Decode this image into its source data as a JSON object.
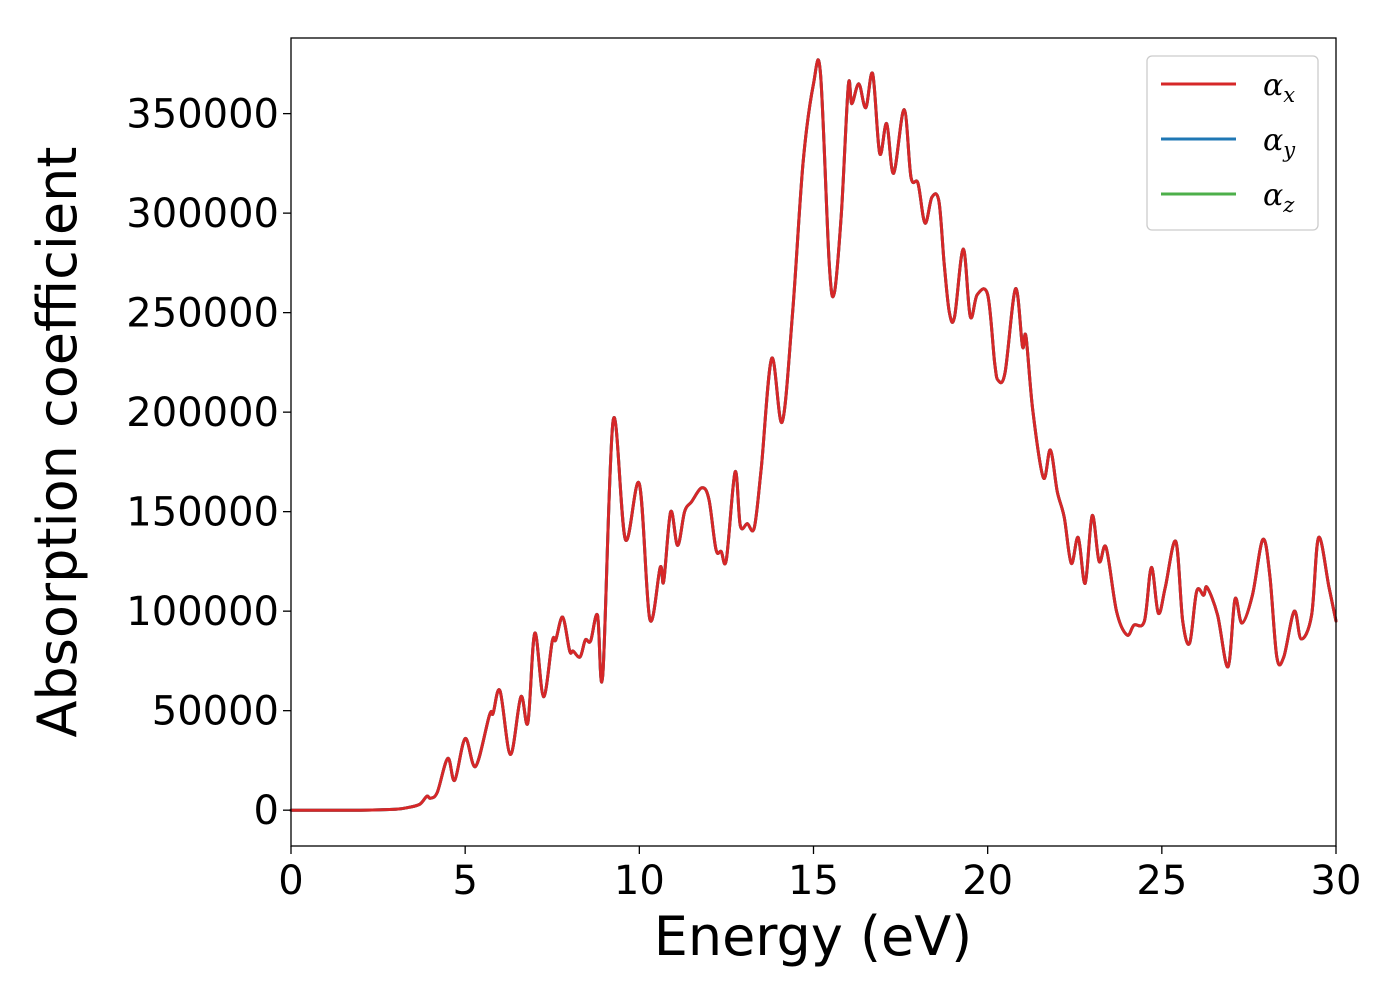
{
  "chart_data": {
    "type": "line",
    "title": "",
    "xlabel": "Energy (eV)",
    "ylabel": "Absorption coefficient",
    "xlim": [
      0,
      30
    ],
    "ylim": [
      -18000,
      388000
    ],
    "xticks": [
      0,
      5,
      10,
      15,
      20,
      25,
      30
    ],
    "yticks": [
      0,
      50000,
      100000,
      150000,
      200000,
      250000,
      300000,
      350000
    ],
    "grid": false,
    "legend_position": "top-right",
    "legend": [
      {
        "base": "α",
        "sub": "x",
        "color": "#d62728"
      },
      {
        "base": "α",
        "sub": "y",
        "color": "#1f77b4"
      },
      {
        "base": "α",
        "sub": "z",
        "color": "#4daf4a"
      }
    ],
    "series": [
      {
        "name": "αz",
        "color": "#4daf4a",
        "x": [
          0,
          1,
          2,
          3,
          3.4,
          3.7,
          3.9,
          4.0,
          4.2,
          4.5,
          4.7,
          5.0,
          5.3,
          5.7,
          5.8,
          6.0,
          6.3,
          6.6,
          6.8,
          7.0,
          7.25,
          7.5,
          7.6,
          7.8,
          8.0,
          8.1,
          8.3,
          8.45,
          8.6,
          8.8,
          8.95,
          9.25,
          9.6,
          10.0,
          10.3,
          10.6,
          10.7,
          10.9,
          11.1,
          11.3,
          11.5,
          11.8,
          12.0,
          12.2,
          12.35,
          12.5,
          12.75,
          12.9,
          13.1,
          13.3,
          13.5,
          13.8,
          14.1,
          14.4,
          14.7,
          15.0,
          15.2,
          15.45,
          15.6,
          15.8,
          16.0,
          16.1,
          16.3,
          16.5,
          16.7,
          16.9,
          17.1,
          17.3,
          17.6,
          17.8,
          18.0,
          18.2,
          18.4,
          18.6,
          18.75,
          18.9,
          19.05,
          19.3,
          19.5,
          19.7,
          20.0,
          20.2,
          20.3,
          20.5,
          20.8,
          21.0,
          21.1,
          21.3,
          21.6,
          21.8,
          22.0,
          22.2,
          22.4,
          22.6,
          22.8,
          23.0,
          23.2,
          23.4,
          23.7,
          24.0,
          24.2,
          24.5,
          24.7,
          24.9,
          25.1,
          25.4,
          25.6,
          25.8,
          26.0,
          26.2,
          26.3,
          26.6,
          26.9,
          27.1,
          27.3,
          27.6,
          27.9,
          28.1,
          28.3,
          28.5,
          28.8,
          29.0,
          29.3,
          29.5,
          29.8,
          30.0
        ],
        "y": [
          0,
          0,
          0,
          500,
          1500,
          3000,
          7000,
          6000,
          9000,
          26000,
          15000,
          36000,
          22000,
          48000,
          48500,
          60000,
          28000,
          57000,
          44000,
          89000,
          57000,
          85000,
          85500,
          97000,
          80000,
          80000,
          77000,
          85500,
          85000,
          98000,
          68000,
          196000,
          136000,
          164000,
          96000,
          122000,
          115000,
          150000,
          133000,
          150000,
          155000,
          162000,
          156000,
          131000,
          130000,
          126000,
          170000,
          143000,
          144000,
          142000,
          172000,
          227000,
          195000,
          250000,
          325000,
          365000,
          370000,
          275000,
          260000,
          300000,
          364000,
          355000,
          365000,
          353000,
          370000,
          330000,
          345000,
          320000,
          352000,
          318000,
          315000,
          295000,
          308000,
          306000,
          275000,
          250000,
          248000,
          282000,
          248000,
          259000,
          259000,
          225000,
          216000,
          220000,
          262000,
          233000,
          238000,
          200000,
          167000,
          181000,
          160000,
          147000,
          124000,
          137000,
          114000,
          148000,
          125000,
          132000,
          100000,
          88000,
          93000,
          95000,
          122000,
          99000,
          112000,
          135000,
          95000,
          84000,
          110000,
          108000,
          112000,
          98000,
          72000,
          106000,
          94000,
          108000,
          136000,
          118000,
          77000,
          77000,
          100000,
          86000,
          98000,
          137000,
          112000,
          95000
        ]
      },
      {
        "name": "αy",
        "color": "#1f77b4",
        "x": [
          0,
          1,
          2,
          3,
          3.4,
          3.7,
          3.9,
          4.0,
          4.2,
          4.5,
          4.7,
          5.0,
          5.3,
          5.7,
          5.8,
          6.0,
          6.3,
          6.6,
          6.8,
          7.0,
          7.25,
          7.5,
          7.6,
          7.8,
          8.0,
          8.1,
          8.3,
          8.45,
          8.6,
          8.8,
          8.95,
          9.25,
          9.6,
          10.0,
          10.3,
          10.6,
          10.7,
          10.9,
          11.1,
          11.3,
          11.5,
          11.8,
          12.0,
          12.2,
          12.35,
          12.5,
          12.75,
          12.9,
          13.1,
          13.3,
          13.5,
          13.8,
          14.1,
          14.4,
          14.7,
          15.0,
          15.2,
          15.45,
          15.6,
          15.8,
          16.0,
          16.1,
          16.3,
          16.5,
          16.7,
          16.9,
          17.1,
          17.3,
          17.6,
          17.8,
          18.0,
          18.2,
          18.4,
          18.6,
          18.75,
          18.9,
          19.05,
          19.3,
          19.5,
          19.7,
          20.0,
          20.2,
          20.3,
          20.5,
          20.8,
          21.0,
          21.1,
          21.3,
          21.6,
          21.8,
          22.0,
          22.2,
          22.4,
          22.6,
          22.8,
          23.0,
          23.2,
          23.4,
          23.7,
          24.0,
          24.2,
          24.5,
          24.7,
          24.9,
          25.1,
          25.4,
          25.6,
          25.8,
          26.0,
          26.2,
          26.3,
          26.6,
          26.9,
          27.1,
          27.3,
          27.6,
          27.9,
          28.1,
          28.3,
          28.5,
          28.8,
          29.0,
          29.3,
          29.5,
          29.8,
          30.0
        ],
        "y": [
          0,
          0,
          0,
          500,
          1500,
          3000,
          7000,
          6000,
          9000,
          26000,
          15000,
          36000,
          22000,
          48000,
          48500,
          60000,
          28000,
          57000,
          44000,
          89000,
          57000,
          85000,
          85500,
          97000,
          80000,
          80000,
          77000,
          85500,
          85000,
          98000,
          68000,
          196000,
          136000,
          164000,
          96000,
          122000,
          115000,
          150000,
          133000,
          150000,
          155000,
          162000,
          156000,
          131000,
          130000,
          126000,
          170000,
          143000,
          144000,
          142000,
          172000,
          227000,
          195000,
          250000,
          325000,
          365000,
          370000,
          275000,
          260000,
          300000,
          364000,
          355000,
          365000,
          353000,
          370000,
          330000,
          345000,
          320000,
          352000,
          318000,
          315000,
          295000,
          308000,
          306000,
          275000,
          250000,
          248000,
          282000,
          248000,
          259000,
          259000,
          225000,
          216000,
          220000,
          262000,
          233000,
          238000,
          200000,
          167000,
          181000,
          160000,
          147000,
          124000,
          137000,
          114000,
          148000,
          125000,
          132000,
          100000,
          88000,
          93000,
          95000,
          122000,
          99000,
          112000,
          135000,
          95000,
          84000,
          110000,
          108000,
          112000,
          98000,
          72000,
          106000,
          94000,
          108000,
          136000,
          118000,
          77000,
          77000,
          100000,
          86000,
          98000,
          137000,
          112000,
          95000
        ]
      },
      {
        "name": "αx",
        "color": "#d62728",
        "x": [
          0,
          1,
          2,
          3,
          3.4,
          3.7,
          3.9,
          4.0,
          4.2,
          4.5,
          4.7,
          5.0,
          5.3,
          5.7,
          5.8,
          6.0,
          6.3,
          6.6,
          6.8,
          7.0,
          7.25,
          7.5,
          7.6,
          7.8,
          8.0,
          8.1,
          8.3,
          8.45,
          8.6,
          8.8,
          8.95,
          9.25,
          9.6,
          10.0,
          10.3,
          10.6,
          10.7,
          10.9,
          11.1,
          11.3,
          11.5,
          11.8,
          12.0,
          12.2,
          12.35,
          12.5,
          12.75,
          12.9,
          13.1,
          13.3,
          13.5,
          13.8,
          14.1,
          14.4,
          14.7,
          15.0,
          15.2,
          15.45,
          15.6,
          15.8,
          16.0,
          16.1,
          16.3,
          16.5,
          16.7,
          16.9,
          17.1,
          17.3,
          17.6,
          17.8,
          18.0,
          18.2,
          18.4,
          18.6,
          18.75,
          18.9,
          19.05,
          19.3,
          19.5,
          19.7,
          20.0,
          20.2,
          20.3,
          20.5,
          20.8,
          21.0,
          21.1,
          21.3,
          21.6,
          21.8,
          22.0,
          22.2,
          22.4,
          22.6,
          22.8,
          23.0,
          23.2,
          23.4,
          23.7,
          24.0,
          24.2,
          24.5,
          24.7,
          24.9,
          25.1,
          25.4,
          25.6,
          25.8,
          26.0,
          26.2,
          26.3,
          26.6,
          26.9,
          27.1,
          27.3,
          27.6,
          27.9,
          28.1,
          28.3,
          28.5,
          28.8,
          29.0,
          29.3,
          29.5,
          29.8,
          30.0
        ],
        "y": [
          0,
          0,
          0,
          500,
          1500,
          3000,
          7000,
          6000,
          9000,
          26000,
          15000,
          36000,
          22000,
          48000,
          48500,
          60000,
          28000,
          57000,
          44000,
          89000,
          57000,
          85000,
          85500,
          97000,
          80000,
          80000,
          77000,
          85500,
          85000,
          98000,
          68000,
          196000,
          136000,
          164000,
          96000,
          122000,
          115000,
          150000,
          133000,
          150000,
          155000,
          162000,
          156000,
          131000,
          130000,
          126000,
          170000,
          143000,
          144000,
          142000,
          172000,
          227000,
          195000,
          250000,
          325000,
          365000,
          370000,
          275000,
          260000,
          300000,
          364000,
          355000,
          365000,
          353000,
          370000,
          330000,
          345000,
          320000,
          352000,
          318000,
          315000,
          295000,
          308000,
          306000,
          275000,
          250000,
          248000,
          282000,
          248000,
          259000,
          259000,
          225000,
          216000,
          220000,
          262000,
          233000,
          238000,
          200000,
          167000,
          181000,
          160000,
          147000,
          124000,
          137000,
          114000,
          148000,
          125000,
          132000,
          100000,
          88000,
          93000,
          95000,
          122000,
          99000,
          112000,
          135000,
          95000,
          84000,
          110000,
          108000,
          112000,
          98000,
          72000,
          106000,
          94000,
          108000,
          136000,
          118000,
          77000,
          77000,
          100000,
          86000,
          98000,
          137000,
          112000,
          95000
        ]
      }
    ]
  }
}
